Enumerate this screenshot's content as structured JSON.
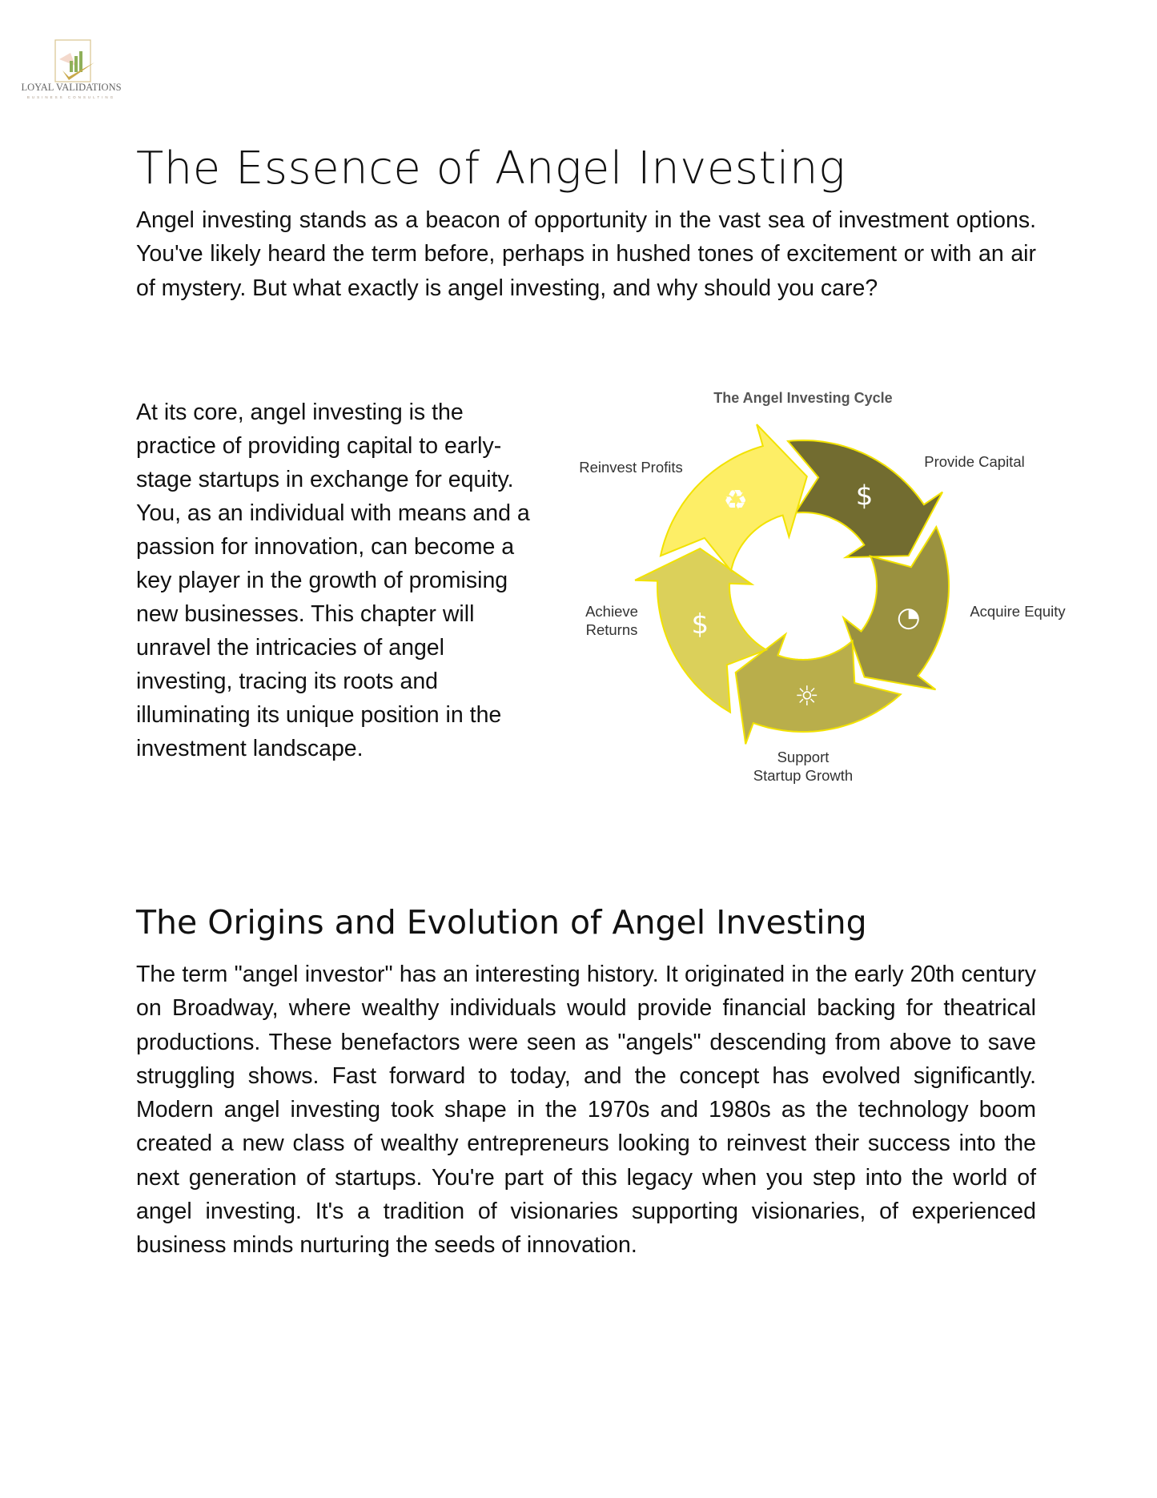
{
  "logo": {
    "name": "LOYAL VALIDATIONS",
    "tagline": "BUSINESS CONSULTING"
  },
  "section1": {
    "title": "The Essence of Angel Investing",
    "paragraph": "Angel investing stands as a beacon of opportunity in the vast sea of investment options. You've likely heard the term before, perhaps in hushed tones of excitement or with an air of mystery. But what exactly is angel investing, and why should you care?",
    "side_paragraph": "At its core, angel investing is the practice of providing capital to early-stage startups in exchange for equity. You, as an individual with means and a passion for innovation, can become a key player in the growth of promising new businesses. This chapter will unravel the intricacies of angel investing, tracing its roots and illuminating its unique position in the investment landscape."
  },
  "diagram": {
    "title": "The Angel Investing Cycle",
    "outline_color": "#f2e200",
    "steps": [
      {
        "label": "Provide Capital",
        "icon": "money-bag-hand-icon",
        "color": "#726c30"
      },
      {
        "label": "Acquire Equity",
        "icon": "person-pie-chart-icon",
        "color": "#9a913f"
      },
      {
        "label": "Support Startup Growth",
        "label_lines": [
          "Support",
          "Startup Growth"
        ],
        "icon": "sun-sprout-icon",
        "color": "#b9ae4b"
      },
      {
        "label": "Achieve Returns",
        "label_lines": [
          "Achieve",
          "Returns"
        ],
        "icon": "dollar-icon",
        "color": "#dbd05a"
      },
      {
        "label": "Reinvest Profits",
        "icon": "recycle-leaf-icon",
        "color": "#fdee66"
      }
    ]
  },
  "section2": {
    "title": "The Origins and Evolution of Angel Investing",
    "paragraph": "The term \"angel investor\" has an interesting history. It originated in the early 20th century on Broadway, where wealthy individuals would provide financial backing for theatrical productions. These benefactors were seen as \"angels\" descending from above to save struggling shows. Fast forward to today, and the concept has evolved significantly. Modern angel investing took shape in the 1970s and 1980s as the technology boom created a new class of wealthy entrepreneurs looking to reinvest their success into the next generation of startups. You're part of this legacy when you step into the world of angel investing. It's a tradition of visionaries supporting visionaries, of experienced business minds nurturing the seeds of innovation."
  }
}
